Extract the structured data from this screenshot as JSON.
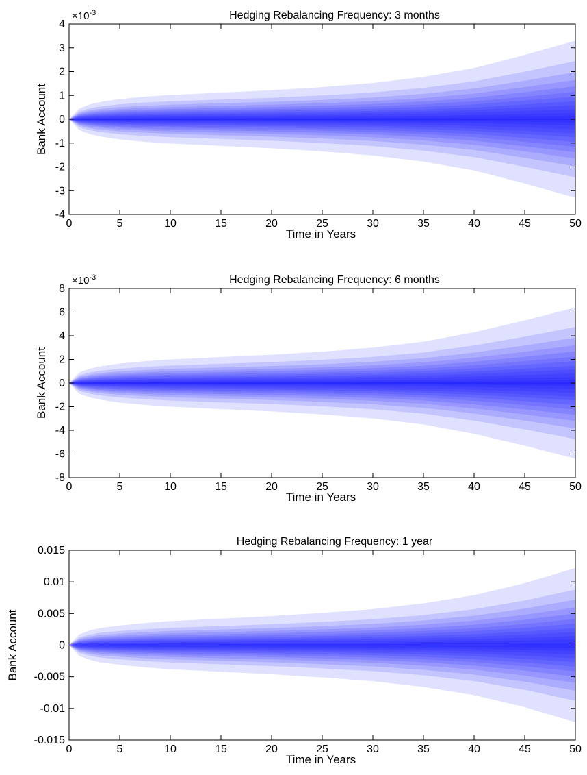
{
  "chart_data": [
    {
      "type": "area",
      "title": "Hedging Rebalancing Frequency: 3 months",
      "xlabel": "Time in Years",
      "ylabel": "Bank Account",
      "exponent_label": "×10",
      "exponent_power": "-3",
      "xlim": [
        0,
        50
      ],
      "ylim": [
        -4,
        4
      ],
      "xticks": [
        "0",
        "5",
        "10",
        "15",
        "20",
        "25",
        "30",
        "35",
        "40",
        "45",
        "50"
      ],
      "yticks": [
        "-4",
        "-3",
        "-2",
        "-1",
        "0",
        "1",
        "2",
        "3",
        "4"
      ],
      "x": [
        0,
        1,
        2,
        3,
        5,
        7.5,
        10,
        15,
        20,
        25,
        30,
        35,
        40,
        45,
        50
      ],
      "outer_band_upper": [
        0,
        0.45,
        0.62,
        0.72,
        0.85,
        0.95,
        1.02,
        1.12,
        1.22,
        1.35,
        1.52,
        1.78,
        2.15,
        2.7,
        3.3
      ],
      "band_fractions": [
        1.0,
        0.74,
        0.6,
        0.5,
        0.42,
        0.35,
        0.29,
        0.23,
        0.18,
        0.13,
        0.08,
        0.04
      ],
      "band_color": "#0000ff"
    },
    {
      "type": "area",
      "title": "Hedging Rebalancing Frequency: 6 months",
      "xlabel": "Time in Years",
      "ylabel": "Bank Account",
      "exponent_label": "×10",
      "exponent_power": "-3",
      "xlim": [
        0,
        50
      ],
      "ylim": [
        -8,
        8
      ],
      "xticks": [
        "0",
        "5",
        "10",
        "15",
        "20",
        "25",
        "30",
        "35",
        "40",
        "45",
        "50"
      ],
      "yticks": [
        "-8",
        "-6",
        "-4",
        "-2",
        "0",
        "2",
        "4",
        "6",
        "8"
      ],
      "x": [
        0,
        1,
        2,
        3,
        5,
        7.5,
        10,
        15,
        20,
        25,
        30,
        35,
        40,
        45,
        50
      ],
      "outer_band_upper": [
        0,
        0.9,
        1.2,
        1.4,
        1.65,
        1.85,
        2.0,
        2.2,
        2.4,
        2.65,
        3.0,
        3.5,
        4.3,
        5.3,
        6.4
      ],
      "band_fractions": [
        1.0,
        0.74,
        0.6,
        0.5,
        0.42,
        0.35,
        0.29,
        0.23,
        0.18,
        0.13,
        0.08,
        0.04
      ],
      "band_color": "#0000ff"
    },
    {
      "type": "area",
      "title": "Hedging Rebalancing Frequency: 1 year",
      "xlabel": "Time in Years",
      "ylabel": "Bank Account",
      "exponent_label": "",
      "exponent_power": "",
      "xlim": [
        0,
        50
      ],
      "ylim": [
        -0.015,
        0.015
      ],
      "xticks": [
        "0",
        "5",
        "10",
        "15",
        "20",
        "25",
        "30",
        "35",
        "40",
        "45",
        "50"
      ],
      "yticks": [
        "-0.015",
        "-0.01",
        "-0.005",
        "0",
        "0.005",
        "0.01",
        "0.015"
      ],
      "x": [
        0,
        1,
        2,
        3,
        5,
        7.5,
        10,
        15,
        20,
        25,
        30,
        35,
        40,
        45,
        50
      ],
      "outer_band_upper": [
        0,
        0.0017,
        0.0023,
        0.0027,
        0.0031,
        0.0035,
        0.0038,
        0.0042,
        0.0046,
        0.0051,
        0.0057,
        0.0066,
        0.0079,
        0.0098,
        0.0122
      ],
      "band_fractions": [
        1.0,
        0.72,
        0.59,
        0.49,
        0.41,
        0.34,
        0.28,
        0.22,
        0.17,
        0.12,
        0.075,
        0.035
      ],
      "band_color": "#0000ff"
    }
  ]
}
